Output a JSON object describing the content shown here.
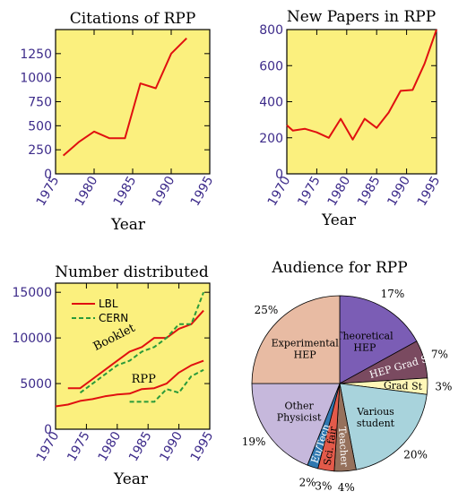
{
  "colors": {
    "plot_bg": "#fbf07e",
    "line_red": "#e01010",
    "line_green": "#2a9a3a",
    "tick_text": "#3d2b8a"
  },
  "chart_data": [
    {
      "id": "citations",
      "type": "line",
      "title": "Citations of RPP",
      "xlabel": "Year",
      "ylabel": "",
      "xlim": [
        1975,
        1995
      ],
      "ylim": [
        0,
        1500
      ],
      "xticks": [
        1975,
        1980,
        1985,
        1990,
        1995
      ],
      "yticks": [
        0,
        250,
        500,
        750,
        1000,
        1250
      ],
      "series": [
        {
          "color": "#e01010",
          "dash": false,
          "x": [
            1976,
            1978,
            1980,
            1982,
            1984,
            1986,
            1988,
            1990,
            1992
          ],
          "y": [
            190,
            330,
            440,
            370,
            370,
            940,
            890,
            1250,
            1410
          ]
        }
      ]
    },
    {
      "id": "new_papers",
      "type": "line",
      "title": "New Papers in RPP",
      "xlabel": "Year",
      "ylabel": "",
      "xlim": [
        1970,
        1995
      ],
      "ylim": [
        0,
        800
      ],
      "xticks": [
        1970,
        1975,
        1980,
        1985,
        1990,
        1995
      ],
      "yticks": [
        0,
        200,
        400,
        600,
        800
      ],
      "series": [
        {
          "color": "#e01010",
          "dash": false,
          "x": [
            1970,
            1971,
            1973,
            1975,
            1977,
            1979,
            1981,
            1983,
            1985,
            1987,
            1989,
            1991,
            1993,
            1995
          ],
          "y": [
            270,
            240,
            250,
            230,
            200,
            305,
            190,
            305,
            255,
            340,
            460,
            465,
            610,
            800
          ]
        }
      ]
    },
    {
      "id": "distributed",
      "type": "line",
      "title": "Number distributed",
      "xlabel": "Year",
      "ylabel": "",
      "xlim": [
        1970,
        1995
      ],
      "ylim": [
        0,
        16000
      ],
      "xticks": [
        1970,
        1975,
        1980,
        1985,
        1990,
        1995
      ],
      "yticks": [
        0,
        5000,
        10000,
        15000
      ],
      "legend": [
        {
          "name": "LBL",
          "color": "#e01010",
          "dash": false
        },
        {
          "name": "CERN",
          "color": "#2a9a3a",
          "dash": true
        }
      ],
      "annotations": [
        {
          "text": "Booklet",
          "x": 1976.5,
          "y": 8600,
          "angle": -27
        },
        {
          "text": "RPP",
          "x": 1982.3,
          "y": 5100,
          "angle": 0
        }
      ],
      "series": [
        {
          "name": "LBL Booklet",
          "color": "#e01010",
          "dash": false,
          "x": [
            1972,
            1974,
            1976,
            1978,
            1980,
            1982,
            1984,
            1986,
            1988,
            1990,
            1992,
            1994
          ],
          "y": [
            4500,
            4500,
            5500,
            6500,
            7500,
            8500,
            9000,
            10000,
            10000,
            11000,
            11500,
            13000
          ]
        },
        {
          "name": "CERN Booklet",
          "color": "#2a9a3a",
          "dash": true,
          "x": [
            1974,
            1976,
            1978,
            1980,
            1982,
            1984,
            1986,
            1988,
            1990,
            1992,
            1994
          ],
          "y": [
            4000,
            5000,
            6000,
            7000,
            7500,
            8500,
            9000,
            10000,
            11500,
            11500,
            15000
          ]
        },
        {
          "name": "LBL RPP",
          "color": "#e01010",
          "dash": false,
          "x": [
            1970,
            1972,
            1974,
            1976,
            1978,
            1980,
            1982,
            1984,
            1986,
            1988,
            1990,
            1992,
            1994
          ],
          "y": [
            2500,
            2700,
            3100,
            3300,
            3600,
            3800,
            3900,
            4400,
            4500,
            5000,
            6200,
            7000,
            7500
          ]
        },
        {
          "name": "CERN RPP",
          "color": "#2a9a3a",
          "dash": true,
          "x": [
            1982,
            1984,
            1986,
            1988,
            1990,
            1992,
            1994
          ],
          "y": [
            3000,
            3000,
            3000,
            4400,
            4000,
            5800,
            6500
          ]
        }
      ]
    },
    {
      "id": "audience",
      "type": "pie",
      "title": "Audience for RPP",
      "slices": [
        {
          "label": "Theoretical HEP",
          "label_lines": [
            "Theoretical",
            "HEP"
          ],
          "value": 17,
          "pct_label": "17%",
          "color": "#7b5db5",
          "text_color": "#000000"
        },
        {
          "label": "HEP Grad St",
          "label_lines": [
            "HEP Grad St"
          ],
          "value": 7,
          "pct_label": "7%",
          "color": "#7a4a60",
          "text_color": "#ffffff"
        },
        {
          "label": "Grad St",
          "label_lines": [
            "Grad St"
          ],
          "value": 3,
          "pct_label": "3%",
          "color": "#fff7b8",
          "text_color": "#000000"
        },
        {
          "label": "Various student",
          "label_lines": [
            "Various",
            "student"
          ],
          "value": 20,
          "pct_label": "20%",
          "color": "#a8d3dc",
          "text_color": "#000000"
        },
        {
          "label": "Teacher",
          "label_lines": [
            "Teacher"
          ],
          "value": 4,
          "pct_label": "4%",
          "color": "#96715c",
          "text_color": "#ffffff"
        },
        {
          "label": "Sci. fair",
          "label_lines": [
            "Sci. fair"
          ],
          "value": 3,
          "pct_label": "3%",
          "color": "#e35a4a",
          "text_color": "#000000"
        },
        {
          "label": "Eu/Tech",
          "label_lines": [
            "Eu/Tech"
          ],
          "value": 2,
          "pct_label": "2%",
          "color": "#2f78b0",
          "text_color": "#ffffff"
        },
        {
          "label": "Other Physicist",
          "label_lines": [
            "Other",
            "Physicist"
          ],
          "value": 19,
          "pct_label": "19%",
          "color": "#c6b8dc",
          "text_color": "#000000"
        },
        {
          "label": "Experimental HEP",
          "label_lines": [
            "Experimental",
            "HEP"
          ],
          "value": 25,
          "pct_label": "25%",
          "color": "#e8bba3",
          "text_color": "#000000"
        }
      ]
    }
  ]
}
